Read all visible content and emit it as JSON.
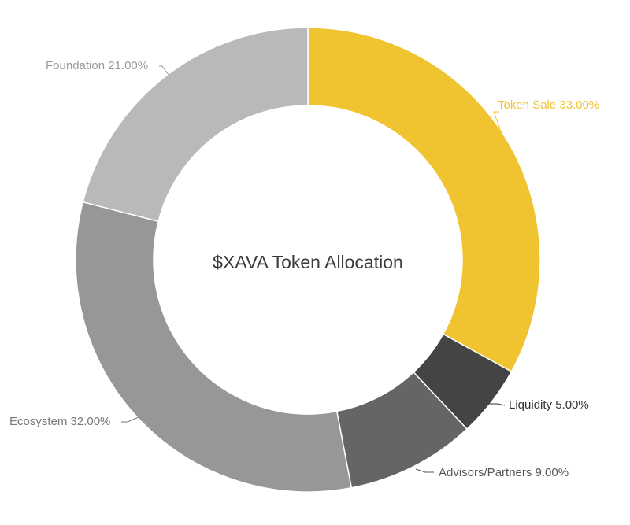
{
  "chart_data": {
    "type": "pie",
    "title": "$XAVA Token Allocation",
    "legend": "none",
    "slices": [
      {
        "label": "Token Sale 33.00%",
        "value": 33,
        "color": "#f0c330",
        "label_color": "#f0c330"
      },
      {
        "label": "Liquidity 5.00%",
        "value": 5,
        "color": "#444444",
        "label_color": "#333333"
      },
      {
        "label": "Advisors/Partners 9.00%",
        "value": 9,
        "color": "#656565",
        "label_color": "#555555"
      },
      {
        "label": "Ecosystem 32.00%",
        "value": 32,
        "color": "#979797",
        "label_color": "#777777"
      },
      {
        "label": "Foundation 21.00%",
        "value": 21,
        "color": "#b9b9b9",
        "label_color": "#9a9a9a"
      }
    ]
  }
}
